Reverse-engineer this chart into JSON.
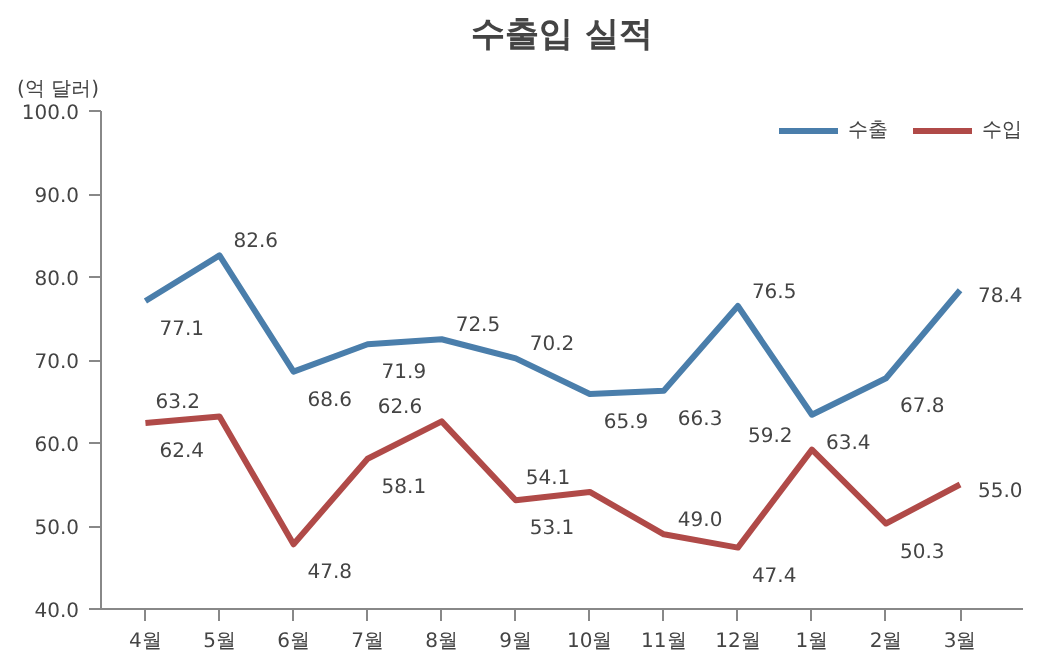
{
  "chart_data": {
    "type": "line",
    "title": "수출입 실적",
    "ylabel": "(억 달러)",
    "categories": [
      "4월",
      "5월",
      "6월",
      "7월",
      "8월",
      "9월",
      "10월",
      "11월",
      "12월",
      "1월",
      "2월",
      "3월"
    ],
    "series": [
      {
        "name": "수출",
        "color": "#4a7eab",
        "values": [
          77.1,
          82.6,
          68.6,
          71.9,
          72.5,
          70.2,
          65.9,
          66.3,
          76.5,
          63.4,
          67.8,
          78.4
        ],
        "value_labels": [
          "77.1",
          "82.6",
          "68.6",
          "71.9",
          "72.5",
          "70.2",
          "65.9",
          "66.3",
          "76.5",
          "63.4",
          "67.8",
          "78.4"
        ]
      },
      {
        "name": "수입",
        "color": "#b04a48",
        "values": [
          62.4,
          63.2,
          47.8,
          58.1,
          62.6,
          53.1,
          54.1,
          49.0,
          47.4,
          59.2,
          50.3,
          55.0
        ],
        "value_labels": [
          "62.4",
          "63.2",
          "47.8",
          "58.1",
          "62.6",
          "53.1",
          "54.1",
          "49.0",
          "47.4",
          "59.2",
          "50.3",
          "55.0"
        ]
      }
    ],
    "ylim": [
      40,
      100
    ],
    "yticks": [
      {
        "value": 40,
        "label": "40.0"
      },
      {
        "value": 50,
        "label": "50.0"
      },
      {
        "value": 60,
        "label": "60.0"
      },
      {
        "value": 70,
        "label": "70.0"
      },
      {
        "value": 80,
        "label": "80.0"
      },
      {
        "value": 90,
        "label": "90.0"
      },
      {
        "value": 100,
        "label": "100.0"
      }
    ],
    "grid": false,
    "legend": "top right",
    "marker": "none",
    "line_style": "solid"
  }
}
